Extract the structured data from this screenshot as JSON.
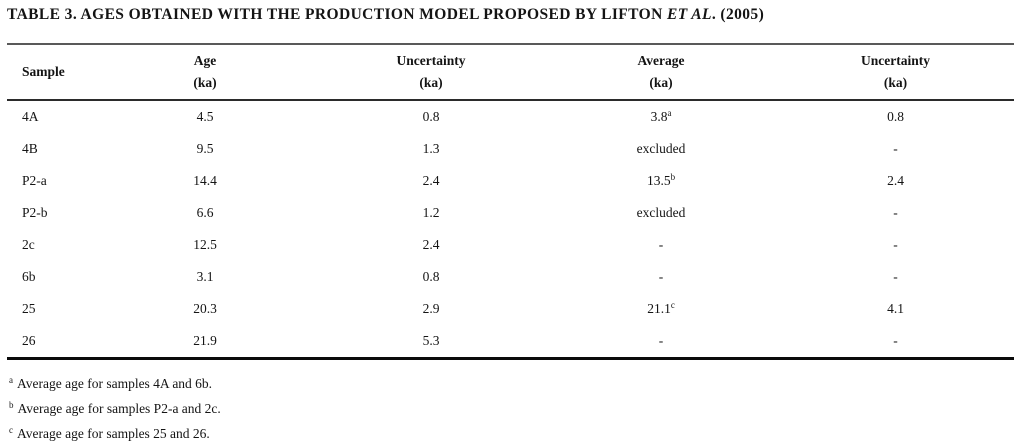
{
  "title": {
    "prefix": "TABLE 3. AGES OBTAINED WITH THE PRODUCTION MODEL PROPOSED BY LIFTON ",
    "italic": "ET AL",
    "suffix": ". (2005)"
  },
  "table": {
    "columns": [
      {
        "label": "Sample",
        "sub": ""
      },
      {
        "label": "Age",
        "sub": "(ka)"
      },
      {
        "label": "Uncertainty",
        "sub": "(ka)"
      },
      {
        "label": "Average",
        "sub": "(ka)"
      },
      {
        "label": "Uncertainty",
        "sub": "(ka)"
      }
    ],
    "rows": [
      {
        "sample": "4A",
        "age": "4.5",
        "uncertainty": "0.8",
        "average": "3.8",
        "average_sup": "a",
        "avg_uncertainty": "0.8"
      },
      {
        "sample": "4B",
        "age": "9.5",
        "uncertainty": "1.3",
        "average": "excluded",
        "average_sup": "",
        "avg_uncertainty": "-"
      },
      {
        "sample": "P2-a",
        "age": "14.4",
        "uncertainty": "2.4",
        "average": "13.5",
        "average_sup": "b",
        "avg_uncertainty": "2.4"
      },
      {
        "sample": "P2-b",
        "age": "6.6",
        "uncertainty": "1.2",
        "average": "excluded",
        "average_sup": "",
        "avg_uncertainty": "-"
      },
      {
        "sample": "2c",
        "age": "12.5",
        "uncertainty": "2.4",
        "average": "-",
        "average_sup": "",
        "avg_uncertainty": "-"
      },
      {
        "sample": "6b",
        "age": "3.1",
        "uncertainty": "0.8",
        "average": "-",
        "average_sup": "",
        "avg_uncertainty": "-"
      },
      {
        "sample": "25",
        "age": "20.3",
        "uncertainty": "2.9",
        "average": "21.1",
        "average_sup": "c",
        "avg_uncertainty": "4.1"
      },
      {
        "sample": "26",
        "age": "21.9",
        "uncertainty": "5.3",
        "average": "-",
        "average_sup": "",
        "avg_uncertainty": "-"
      }
    ]
  },
  "footnotes": [
    {
      "marker": "a",
      "text": "Average age for samples 4A and 6b."
    },
    {
      "marker": "b",
      "text": "Average age for samples P2-a and 2c."
    },
    {
      "marker": "c",
      "text": "Average age for samples 25 and 26."
    }
  ]
}
